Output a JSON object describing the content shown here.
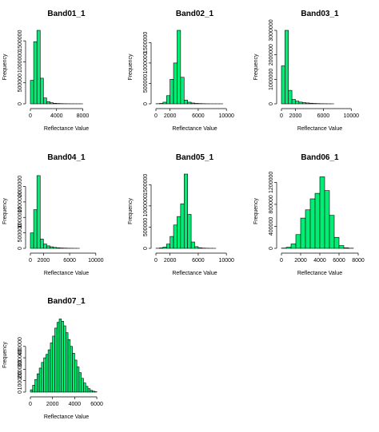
{
  "chart_data": [
    {
      "type": "bar",
      "title": "Band01_1",
      "xlabel": "Reflectance Value",
      "ylabel": "Frequency",
      "bin_width": 500,
      "x_start": 0,
      "xlim": [
        0,
        11000
      ],
      "xticks": [
        0,
        4000,
        8000
      ],
      "ylim": [
        0,
        1750000
      ],
      "yticks": [
        0,
        500000,
        1000000,
        1500000
      ],
      "values": [
        560000,
        1480000,
        1750000,
        610000,
        140000,
        50000,
        25000,
        12000,
        8000,
        5000,
        3000,
        2000,
        1500,
        1000,
        800,
        500
      ]
    },
    {
      "type": "bar",
      "title": "Band02_1",
      "xlabel": "Reflectance Value",
      "ylabel": "Frequency",
      "bin_width": 500,
      "x_start": 0,
      "xlim": [
        0,
        11000
      ],
      "xticks": [
        0,
        2000,
        6000,
        10000
      ],
      "ylim": [
        0,
        1800000
      ],
      "yticks": [
        0,
        500000,
        1000000,
        1500000
      ],
      "values": [
        3000,
        10000,
        40000,
        200000,
        600000,
        1000000,
        1800000,
        650000,
        90000,
        40000,
        20000,
        10000,
        7000,
        4000,
        2000,
        1000,
        800,
        500,
        300
      ]
    },
    {
      "type": "bar",
      "title": "Band03_1",
      "xlabel": "Reflectance Value",
      "ylabel": "Frequency",
      "bin_width": 500,
      "x_start": 0,
      "xlim": [
        0,
        11000
      ],
      "xticks": [
        0,
        2000,
        6000,
        10000
      ],
      "ylim": [
        0,
        3000000
      ],
      "yticks": [
        0,
        1000000,
        2000000,
        3000000
      ],
      "values": [
        1550000,
        3000000,
        550000,
        180000,
        110000,
        70000,
        50000,
        35000,
        25000,
        15000,
        10000,
        6000,
        4000,
        2000,
        1000
      ]
    },
    {
      "type": "bar",
      "title": "Band04_1",
      "xlabel": "Reflectance Value",
      "ylabel": "Frequency",
      "bin_width": 500,
      "x_start": 0,
      "xlim": [
        0,
        11000
      ],
      "xticks": [
        0,
        2000,
        6000,
        10000
      ],
      "ylim": [
        0,
        2400000
      ],
      "yticks": [
        0,
        500000,
        1000000,
        1500000,
        2000000
      ],
      "values": [
        500000,
        1250000,
        2350000,
        300000,
        140000,
        80000,
        50000,
        30000,
        20000,
        12000,
        8000,
        5000,
        3000,
        1500,
        800
      ]
    },
    {
      "type": "bar",
      "title": "Band05_1",
      "xlabel": "Reflectance Value",
      "ylabel": "Frequency",
      "bin_width": 500,
      "x_start": 0,
      "xlim": [
        0,
        11000
      ],
      "xticks": [
        0,
        2000,
        6000,
        10000
      ],
      "ylim": [
        0,
        1750000
      ],
      "yticks": [
        0,
        500000,
        1000000,
        1500000
      ],
      "values": [
        3000,
        10000,
        30000,
        100000,
        280000,
        550000,
        750000,
        1050000,
        1750000,
        800000,
        150000,
        40000,
        15000,
        6000,
        3000,
        1500,
        800
      ]
    },
    {
      "type": "bar",
      "title": "Band06_1",
      "xlabel": "Reflectance Value",
      "ylabel": "Frequency",
      "bin_width": 500,
      "x_start": 0,
      "xlim": [
        0,
        8000
      ],
      "xticks": [
        0,
        2000,
        4000,
        6000,
        8000
      ],
      "ylim": [
        0,
        1350000
      ],
      "yticks": [
        0,
        400000,
        800000,
        1200000
      ],
      "values": [
        5000,
        20000,
        80000,
        250000,
        550000,
        700000,
        900000,
        1000000,
        1300000,
        1050000,
        600000,
        200000,
        50000,
        10000,
        3000
      ]
    },
    {
      "type": "bar",
      "title": "Band07_1",
      "xlabel": "Reflectance Value",
      "ylabel": "Frequency",
      "bin_width": 200,
      "x_start": 0,
      "xlim": [
        0,
        6500
      ],
      "xticks": [
        0,
        2000,
        4000,
        6000
      ],
      "ylim": [
        0,
        650000
      ],
      "yticks": [
        0,
        100000,
        200000,
        300000,
        400000
      ],
      "values": [
        20000,
        60000,
        110000,
        160000,
        210000,
        260000,
        300000,
        330000,
        370000,
        430000,
        490000,
        560000,
        610000,
        640000,
        620000,
        580000,
        520000,
        460000,
        400000,
        340000,
        280000,
        220000,
        170000,
        120000,
        80000,
        50000,
        30000,
        15000,
        8000,
        3000
      ]
    }
  ]
}
